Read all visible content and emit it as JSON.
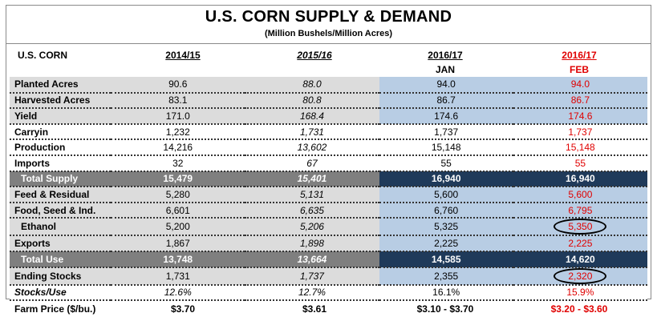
{
  "title": "U.S. CORN SUPPLY & DEMAND",
  "subtitle": "(Million Bushels/Million Acres)",
  "header": {
    "corner": "U.S. CORN",
    "col1": "2014/15",
    "col2": "2015/16",
    "col3": "2016/17",
    "col3_sub": "JAN",
    "col4": "2016/17",
    "col4_sub": "FEB"
  },
  "rows": [
    {
      "label": "Planted Acres",
      "v1": "90.6",
      "v2": "88.0",
      "v3": "94.0",
      "v4": "94.0"
    },
    {
      "label": "Harvested Acres",
      "v1": "83.1",
      "v2": "80.8",
      "v3": "86.7",
      "v4": "86.7"
    },
    {
      "label": "Yield",
      "v1": "171.0",
      "v2": "168.4",
      "v3": "174.6",
      "v4": "174.6"
    },
    {
      "label": "Carryin",
      "v1": "1,232",
      "v2": "1,731",
      "v3": "1,737",
      "v4": "1,737"
    },
    {
      "label": "Production",
      "v1": "14,216",
      "v2": "13,602",
      "v3": "15,148",
      "v4": "15,148"
    },
    {
      "label": "Imports",
      "v1": "32",
      "v2": "67",
      "v3": "55",
      "v4": "55"
    },
    {
      "label": "Total Supply",
      "v1": "15,479",
      "v2": "15,401",
      "v3": "16,940",
      "v4": "16,940"
    },
    {
      "label": "Feed & Residual",
      "v1": "5,280",
      "v2": "5,131",
      "v3": "5,600",
      "v4": "5,600"
    },
    {
      "label": "Food, Seed & Ind.",
      "v1": "6,601",
      "v2": "6,635",
      "v3": "6,760",
      "v4": "6,795"
    },
    {
      "label": "Ethanol",
      "v1": "5,200",
      "v2": "5,206",
      "v3": "5,325",
      "v4": "5,350"
    },
    {
      "label": "Exports",
      "v1": "1,867",
      "v2": "1,898",
      "v3": "2,225",
      "v4": "2,225"
    },
    {
      "label": "Total Use",
      "v1": "13,748",
      "v2": "13,664",
      "v3": "14,585",
      "v4": "14,620"
    },
    {
      "label": "Ending Stocks",
      "v1": "1,731",
      "v2": "1,737",
      "v3": "2,355",
      "v4": "2,320"
    },
    {
      "label": "Stocks/Use",
      "v1": "12.6%",
      "v2": "12.7%",
      "v3": "16.1%",
      "v4": "15.9%"
    }
  ],
  "footer": {
    "label": "Farm Price ($/bu.)",
    "v1": "$3.70",
    "v2": "$3.61",
    "v3": "$3.10 - $3.70",
    "v4": "$3.20 - $3.60"
  }
}
